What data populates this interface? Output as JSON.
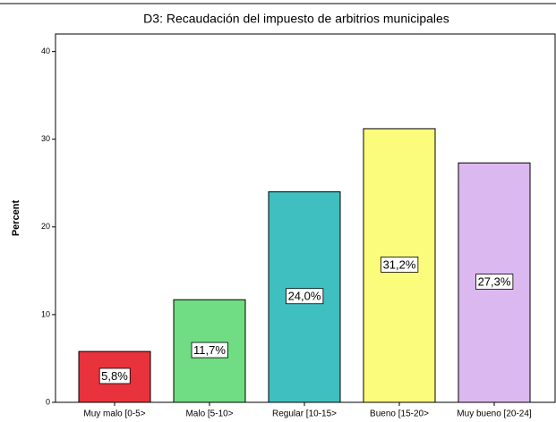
{
  "chart_data": {
    "type": "bar",
    "title": "D3: Recaudación del impuesto de arbitrios municipales",
    "y_label": "Percent",
    "categories": [
      "Muy malo [0-5>",
      "Malo [5-10>",
      "Regular [10-15>",
      "Bueno [15-20>",
      "Muy bueno [20-24]"
    ],
    "values": [
      5.8,
      11.7,
      24.0,
      31.2,
      27.3
    ],
    "value_labels": [
      "5,8%",
      "11,7%",
      "24,0%",
      "31,2%",
      "27,3%"
    ],
    "colors": [
      "#e8333c",
      "#70dc84",
      "#3fbfbf",
      "#fbfb7c",
      "#dcb8f0"
    ],
    "ylim": [
      0,
      42
    ],
    "yticks": [
      0,
      10,
      20,
      30,
      40
    ],
    "grid": false
  }
}
